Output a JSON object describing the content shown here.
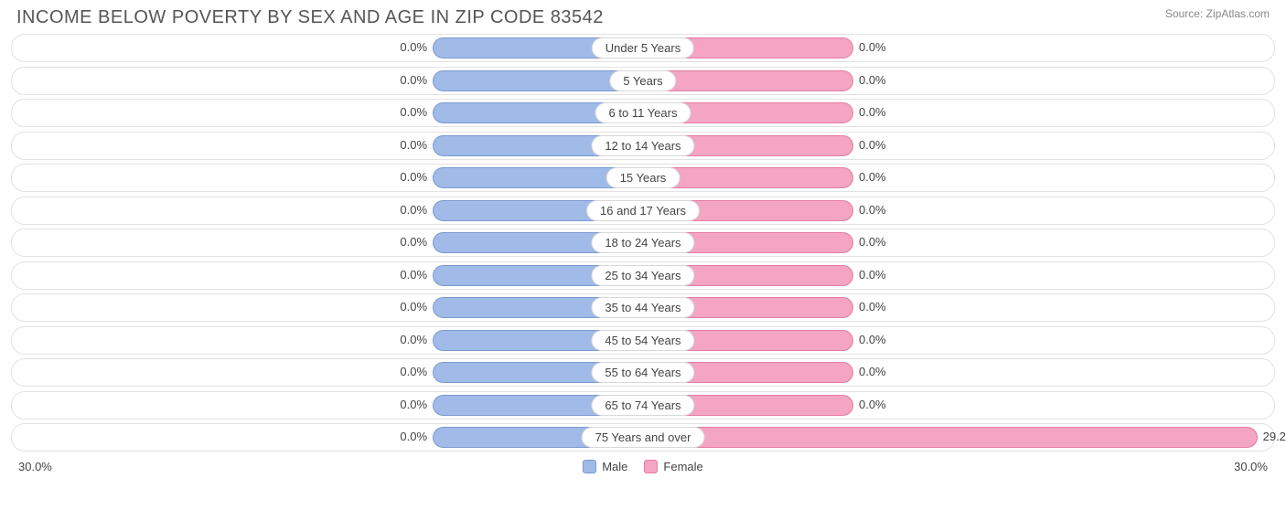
{
  "title": "INCOME BELOW POVERTY BY SEX AND AGE IN ZIP CODE 83542",
  "source": "Source: ZipAtlas.com",
  "chart": {
    "type": "diverging-bar",
    "axis_max_percent": 30.0,
    "axis_left_label": "30.0%",
    "axis_right_label": "30.0%",
    "min_bar_percent": 10.0,
    "male_color": "#a0bbe8",
    "male_border": "#7a99cf",
    "female_color": "#f3a5c2",
    "female_border": "#e57ba3",
    "row_bg": "#ffffff",
    "row_border": "#e2e2e2",
    "label_fontsize": 13,
    "title_fontsize": 20,
    "title_color": "#555555",
    "categories": [
      {
        "label": "Under 5 Years",
        "male": 0.0,
        "female": 0.0
      },
      {
        "label": "5 Years",
        "male": 0.0,
        "female": 0.0
      },
      {
        "label": "6 to 11 Years",
        "male": 0.0,
        "female": 0.0
      },
      {
        "label": "12 to 14 Years",
        "male": 0.0,
        "female": 0.0
      },
      {
        "label": "15 Years",
        "male": 0.0,
        "female": 0.0
      },
      {
        "label": "16 and 17 Years",
        "male": 0.0,
        "female": 0.0
      },
      {
        "label": "18 to 24 Years",
        "male": 0.0,
        "female": 0.0
      },
      {
        "label": "25 to 34 Years",
        "male": 0.0,
        "female": 0.0
      },
      {
        "label": "35 to 44 Years",
        "male": 0.0,
        "female": 0.0
      },
      {
        "label": "45 to 54 Years",
        "male": 0.0,
        "female": 0.0
      },
      {
        "label": "55 to 64 Years",
        "male": 0.0,
        "female": 0.0
      },
      {
        "label": "65 to 74 Years",
        "male": 0.0,
        "female": 0.0
      },
      {
        "label": "75 Years and over",
        "male": 0.0,
        "female": 29.2
      }
    ]
  },
  "legend": {
    "male": "Male",
    "female": "Female"
  }
}
